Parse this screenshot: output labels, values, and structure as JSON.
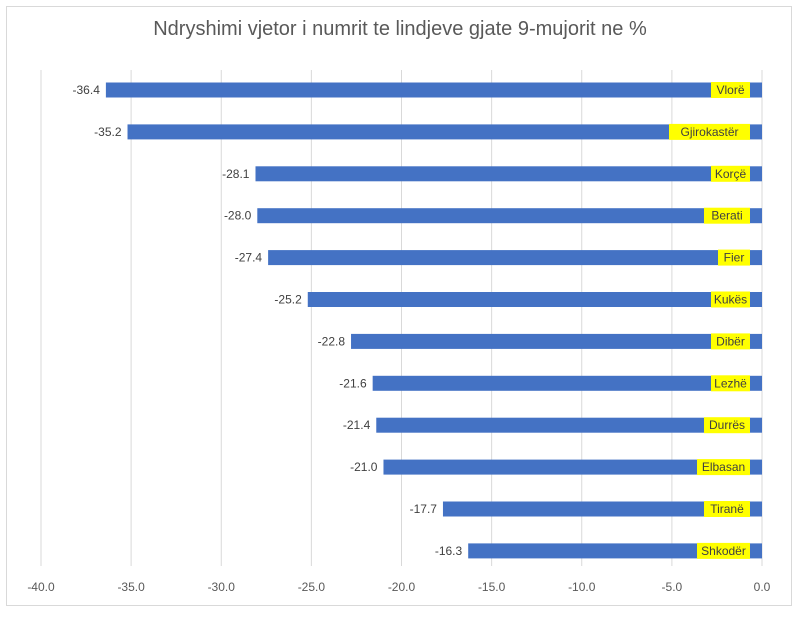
{
  "chart_data": {
    "type": "bar",
    "orientation": "horizontal",
    "title": "Ndryshimi vjetor i numrit te lindjeve gjate 9-mujorit ne %",
    "categories": [
      "Vlorë",
      "Gjirokastër",
      "Korçë",
      "Berati",
      "Fier",
      "Kukës",
      "Dibër",
      "Lezhë",
      "Durrës",
      "Elbasan",
      "Tiranë",
      "Shkodër"
    ],
    "values": [
      -36.4,
      -35.2,
      -28.1,
      -28.0,
      -27.4,
      -25.2,
      -22.8,
      -21.6,
      -21.4,
      -21.0,
      -17.7,
      -16.3
    ],
    "value_labels": [
      "-36.4",
      "-35.2",
      "-28.1",
      "-28.0",
      "-27.4",
      "-25.2",
      "-22.8",
      "-21.6",
      "-21.4",
      "-21.0",
      "-17.7",
      "-16.3"
    ],
    "xlim": [
      -40,
      0
    ],
    "xticks": [
      -40,
      -35,
      -30,
      -25,
      -20,
      -15,
      -10,
      -5,
      0
    ],
    "xtick_labels": [
      "-40.0",
      "-35.0",
      "-30.0",
      "-25.0",
      "-20.0",
      "-15.0",
      "-10.0",
      "-5.0",
      "0.0"
    ],
    "xlabel": "",
    "ylabel": "",
    "grid": "vertical",
    "legend": "none",
    "colors": {
      "bar": "#4472c4",
      "category_label_bg": "#ffff00",
      "grid": "#d9d9d9",
      "text": "#595959"
    }
  }
}
